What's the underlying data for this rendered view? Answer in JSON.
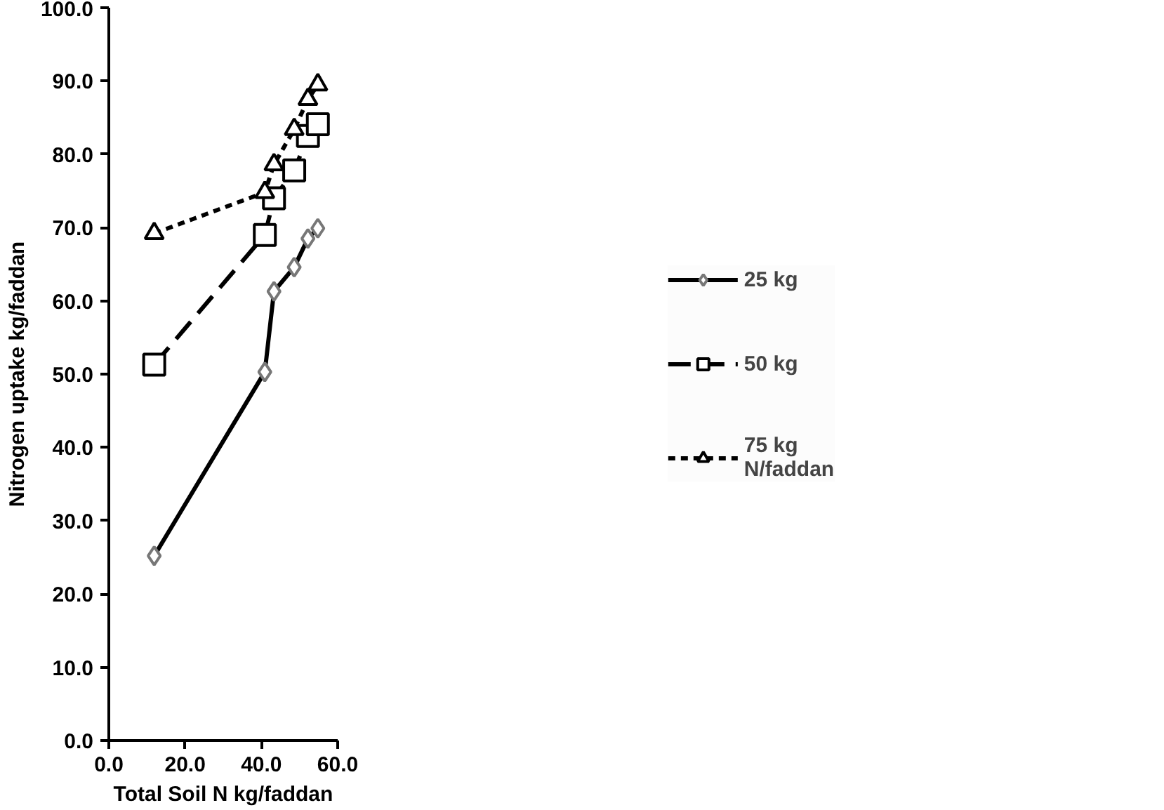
{
  "chart_data": {
    "type": "line",
    "xlabel": "Total Soil N kg/faddan",
    "ylabel": "Nitrogen uptake kg/faddan",
    "xlim": [
      0,
      60
    ],
    "ylim": [
      0,
      100
    ],
    "xticks": [
      {
        "value": 0,
        "label": "0.0"
      },
      {
        "value": 20,
        "label": "20.0"
      },
      {
        "value": 40,
        "label": "40.0"
      },
      {
        "value": 60,
        "label": "60.0"
      }
    ],
    "yticks": [
      {
        "value": 0,
        "label": "0.0"
      },
      {
        "value": 10,
        "label": "10.0"
      },
      {
        "value": 20,
        "label": "20.0"
      },
      {
        "value": 30,
        "label": "30.0"
      },
      {
        "value": 40,
        "label": "40.0"
      },
      {
        "value": 50,
        "label": "50.0"
      },
      {
        "value": 60,
        "label": "60.0"
      },
      {
        "value": 70,
        "label": "70.0"
      },
      {
        "value": 80,
        "label": "80.0"
      },
      {
        "value": 90,
        "label": "90.0"
      },
      {
        "value": 100,
        "label": "100.0"
      }
    ],
    "x": [
      11.9,
      40.9,
      43.3,
      48.6,
      52.2,
      54.8
    ],
    "series": [
      {
        "name": "25 kg",
        "color": "#000000",
        "marker": "diamond",
        "line_style": "solid",
        "values": [
          25.2,
          50.3,
          61.3,
          64.6,
          68.5,
          69.9
        ]
      },
      {
        "name": "50 kg",
        "color": "#000000",
        "marker": "square",
        "line_style": "dashed",
        "values": [
          51.3,
          69.0,
          74.0,
          77.8,
          82.5,
          84.1
        ]
      },
      {
        "name": "75 kg\nN/faddan",
        "color": "#000000",
        "marker": "triangle",
        "line_style": "dotted",
        "values": [
          69.2,
          74.8,
          78.6,
          83.4,
          87.5,
          89.5
        ]
      }
    ],
    "legend": "right",
    "grid": false
  }
}
